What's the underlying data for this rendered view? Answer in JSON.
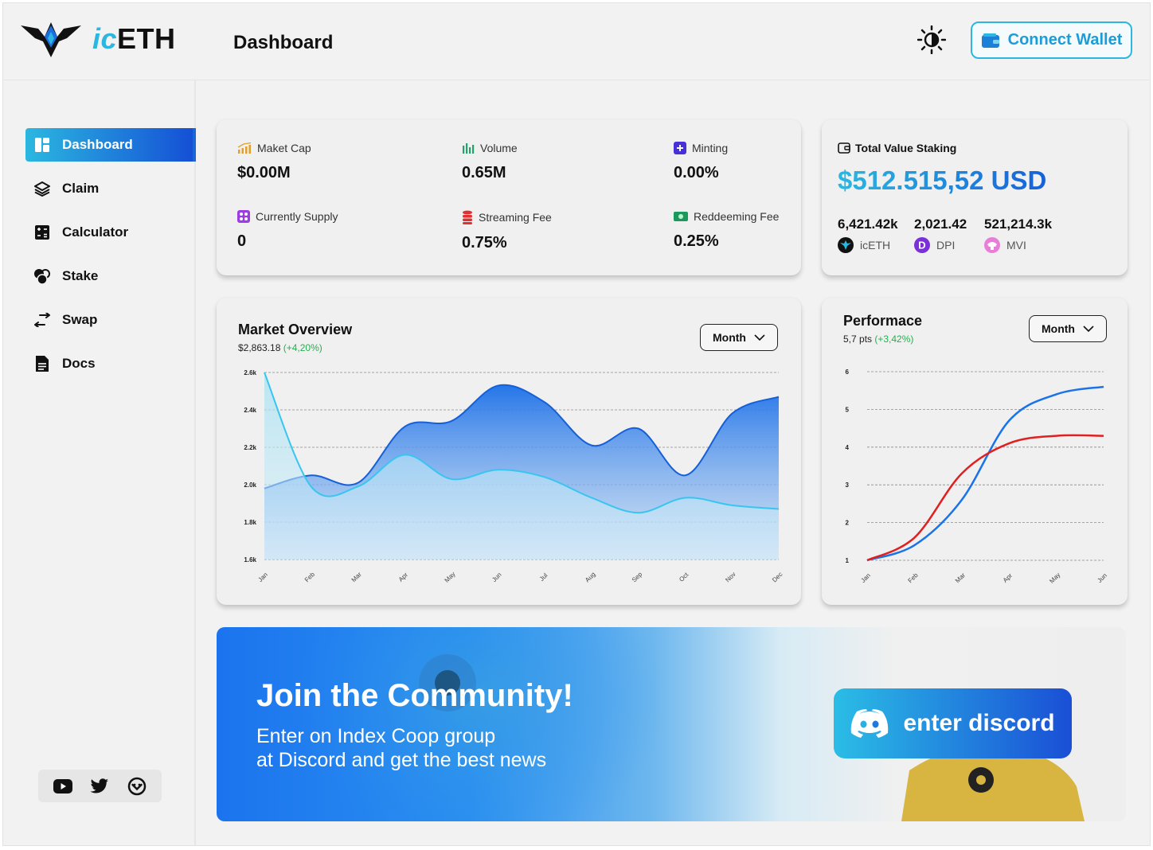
{
  "header": {
    "brand_prefix": "ic",
    "brand_suffix": "ETH",
    "title": "Dashboard",
    "connect_label": "Connect Wallet"
  },
  "sidebar": {
    "items": [
      {
        "label": "Dashboard",
        "icon": "dashboard-icon",
        "active": true
      },
      {
        "label": "Claim",
        "icon": "layers-icon"
      },
      {
        "label": "Calculator",
        "icon": "calculator-icon"
      },
      {
        "label": "Stake",
        "icon": "coins-icon"
      },
      {
        "label": "Swap",
        "icon": "swap-icon"
      },
      {
        "label": "Docs",
        "icon": "document-icon"
      }
    ],
    "social": [
      "youtube-icon",
      "twitter-icon",
      "discord-circle-icon"
    ]
  },
  "stats": [
    {
      "label": "Maket Cap",
      "value": "$0.00M",
      "icon": "chart-up-icon"
    },
    {
      "label": "Volume",
      "value": "0.65M",
      "icon": "bars-icon"
    },
    {
      "label": "Minting",
      "value": "0.00%",
      "icon": "plus-square-icon"
    },
    {
      "label": "Currently Supply",
      "value": "0",
      "icon": "grid-icon"
    },
    {
      "label": "Streaming Fee",
      "value": "0.75%",
      "icon": "stack-icon"
    },
    {
      "label": "Reddeeming Fee",
      "value": "0.25%",
      "icon": "cash-icon"
    }
  ],
  "staking": {
    "label": "Total Value Staking",
    "value": "$512.515,52 USD",
    "tokens": [
      {
        "amount": "6,421.42k",
        "name": "icETH"
      },
      {
        "amount": "2,021.42",
        "name": "DPI"
      },
      {
        "amount": "521,214.3k",
        "name": "MVI"
      }
    ]
  },
  "market": {
    "title": "Market Overview",
    "price": "$2,863.18",
    "change": "(+4,20%)",
    "filter": "Month"
  },
  "performance": {
    "title": "Performace",
    "pts": "5,7 pts",
    "change": "(+3,42%)",
    "filter": "Month"
  },
  "chart_data": [
    {
      "type": "area",
      "title": "Market Overview",
      "categories": [
        "Jan",
        "Feb",
        "Mar",
        "Apr",
        "May",
        "Jun",
        "Jul",
        "Aug",
        "Sep",
        "Oct",
        "Nov",
        "Dec"
      ],
      "y_ticks": [
        "1.6k",
        "1.8k",
        "2.0k",
        "2.2k",
        "2.4k",
        "2.6k"
      ],
      "ylim": [
        1600,
        2600
      ],
      "grid": true,
      "series": [
        {
          "values": [
            1980,
            2050,
            2010,
            2310,
            2340,
            2530,
            2440,
            2210,
            2300,
            2050,
            2380,
            2470
          ]
        },
        {
          "values": [
            2600,
            1990,
            1990,
            2160,
            2030,
            2080,
            2040,
            1930,
            1850,
            1930,
            1890,
            1870
          ]
        }
      ]
    },
    {
      "type": "line",
      "title": "Performace",
      "categories": [
        "Jan",
        "Feb",
        "Mar",
        "Apr",
        "May",
        "Jun"
      ],
      "y_ticks": [
        "1",
        "2",
        "3",
        "4",
        "5",
        "6"
      ],
      "ylim": [
        1,
        6
      ],
      "grid": true,
      "series": [
        {
          "color": "#1a73e8",
          "values": [
            1,
            1.4,
            2.6,
            4.7,
            5.4,
            5.6
          ]
        },
        {
          "color": "#e02020",
          "values": [
            1,
            1.6,
            3.3,
            4.1,
            4.3,
            4.3
          ]
        }
      ]
    }
  ],
  "banner": {
    "title": "Join the Community!",
    "line1": "Enter on Index Coop group",
    "line2": "at Discord and get the best news",
    "button": "enter discord"
  }
}
